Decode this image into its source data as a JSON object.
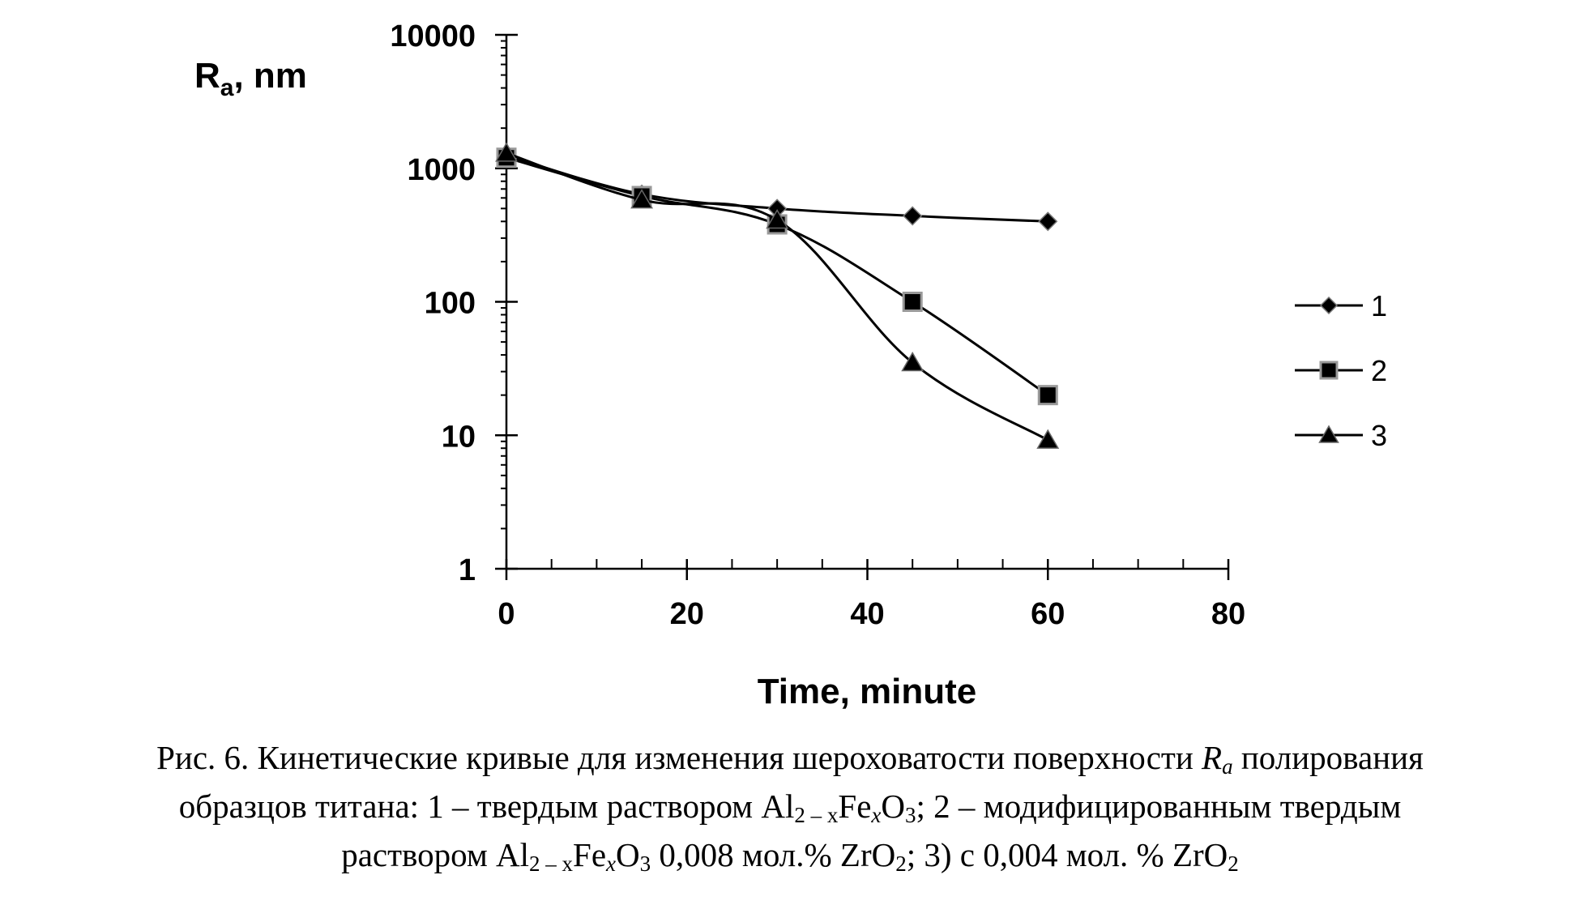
{
  "chart_data": {
    "type": "line",
    "ylabel_main": "R",
    "ylabel_sub": "a",
    "ylabel_rest": ", nm",
    "xlabel": "Time, minute",
    "yscale": "log",
    "ylim": [
      1,
      10000
    ],
    "xlim": [
      0,
      80
    ],
    "xticks": [
      0,
      20,
      40,
      60,
      80
    ],
    "xtick_labels": [
      "0",
      "20",
      "40",
      "60",
      "80"
    ],
    "yticks": [
      1,
      10,
      100,
      1000,
      10000
    ],
    "ytick_labels": [
      "1",
      "10",
      "100",
      "1000",
      "10000"
    ],
    "legend_position": "right",
    "x": [
      0,
      15,
      30,
      45,
      60
    ],
    "series": [
      {
        "name": "1",
        "marker": "diamond",
        "values": [
          1250,
          640,
          500,
          440,
          400
        ]
      },
      {
        "name": "2",
        "marker": "square",
        "values": [
          1200,
          620,
          380,
          100,
          20
        ]
      },
      {
        "name": "3",
        "marker": "triangle",
        "values": [
          1300,
          580,
          410,
          35,
          9.2
        ]
      }
    ]
  },
  "caption": {
    "l1_a": "Рис. 6. Кинетические кривые для изменения шероховатости поверхности ",
    "l1_R": "R",
    "l1_a_sub": "a",
    "l1_b": "  полирования",
    "l2_a": "образцов титана: 1 – твердым раствором Al",
    "l2_sub1": "2 – x",
    "l2_b": "Fe",
    "l2_sub2": "x",
    "l2_c": "O",
    "l2_sub3": "3",
    "l2_d": "; 2 – модифицированным твердым",
    "l3_a": "раствором Al",
    "l3_sub1": "2 – x",
    "l3_b": "Fe",
    "l3_sub2": "x",
    "l3_c": "O",
    "l3_sub3": "3",
    "l3_d": " 0,008 мол.%  ZrO",
    "l3_sub4": "2",
    "l3_e": "; 3) с 0,004 мол. % ZrO",
    "l3_sub5": "2"
  }
}
